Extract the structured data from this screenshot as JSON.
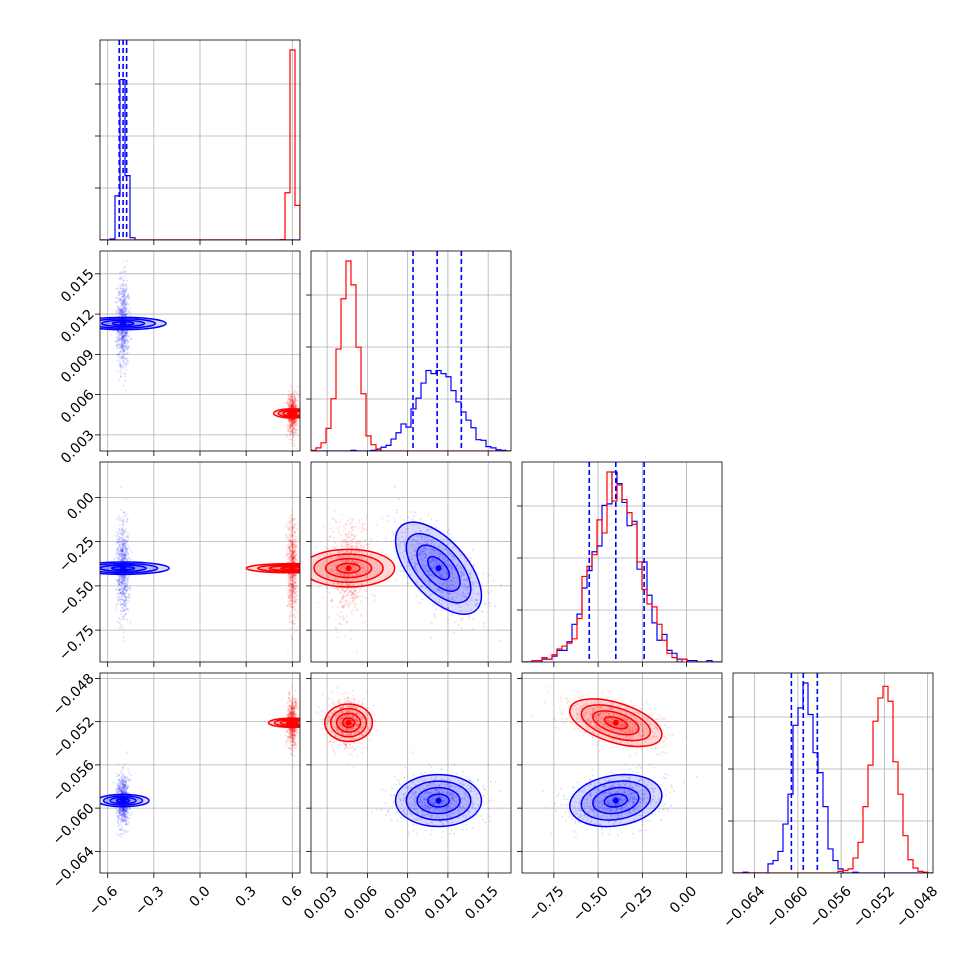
{
  "colors": {
    "series_a": "#0000ff",
    "series_b": "#ff0000",
    "grid": "#b0b0b0"
  },
  "chart_data": {
    "type": "corner",
    "grid": true,
    "n_params": 4,
    "series": [
      {
        "color": "#0000ff",
        "mean": [
          -0.5,
          0.0113,
          -0.4,
          -0.0593
        ],
        "sd": [
          0.02,
          0.0016,
          0.13,
          0.0012
        ],
        "corr": [
          [
            1,
            0,
            0,
            0
          ],
          [
            0,
            1,
            -0.6,
            0
          ],
          [
            0,
            -0.6,
            1,
            0.2
          ],
          [
            0,
            0,
            0.2,
            1
          ]
        ]
      },
      {
        "color": "#ff0000",
        "mean": [
          0.6,
          0.0046,
          -0.4,
          -0.0521
        ],
        "sd": [
          0.015,
          0.0007,
          0.13,
          0.0011
        ],
        "corr": [
          [
            1,
            0,
            0,
            0
          ],
          [
            0,
            1,
            0,
            0
          ],
          [
            0,
            0,
            1,
            -0.5
          ],
          [
            0,
            0,
            -0.5,
            1
          ]
        ]
      }
    ],
    "quantile_lines": [
      [
        -0.525,
        -0.5,
        -0.477
      ],
      [
        0.0094,
        0.0112,
        0.013
      ],
      [
        -0.55,
        -0.4,
        -0.24
      ],
      [
        -0.0606,
        -0.0595,
        -0.0582
      ]
    ],
    "params": [
      {
        "range": [
          -0.65,
          0.65
        ],
        "ticks": [
          -0.6,
          -0.3,
          0.0,
          0.3,
          0.6
        ],
        "tick_labels": [
          "−0.6",
          "−0.3",
          "0.0",
          "0.3",
          "0.6"
        ]
      },
      {
        "range": [
          0.0018,
          0.0167
        ],
        "ticks": [
          0.003,
          0.006,
          0.009,
          0.012,
          0.015
        ],
        "tick_labels": [
          "0.003",
          "0.006",
          "0.009",
          "0.012",
          "0.015"
        ]
      },
      {
        "range": [
          -0.93,
          0.2
        ],
        "ticks": [
          -0.75,
          -0.5,
          -0.25,
          0.0
        ],
        "tick_labels": [
          "−0.75",
          "−0.50",
          "−0.25",
          "0.00"
        ]
      },
      {
        "range": [
          -0.066,
          -0.0475
        ],
        "ticks": [
          -0.064,
          -0.06,
          -0.056,
          -0.052,
          -0.048
        ],
        "tick_labels": [
          "−0.064",
          "−0.060",
          "−0.056",
          "−0.052",
          "−0.048"
        ]
      }
    ]
  }
}
